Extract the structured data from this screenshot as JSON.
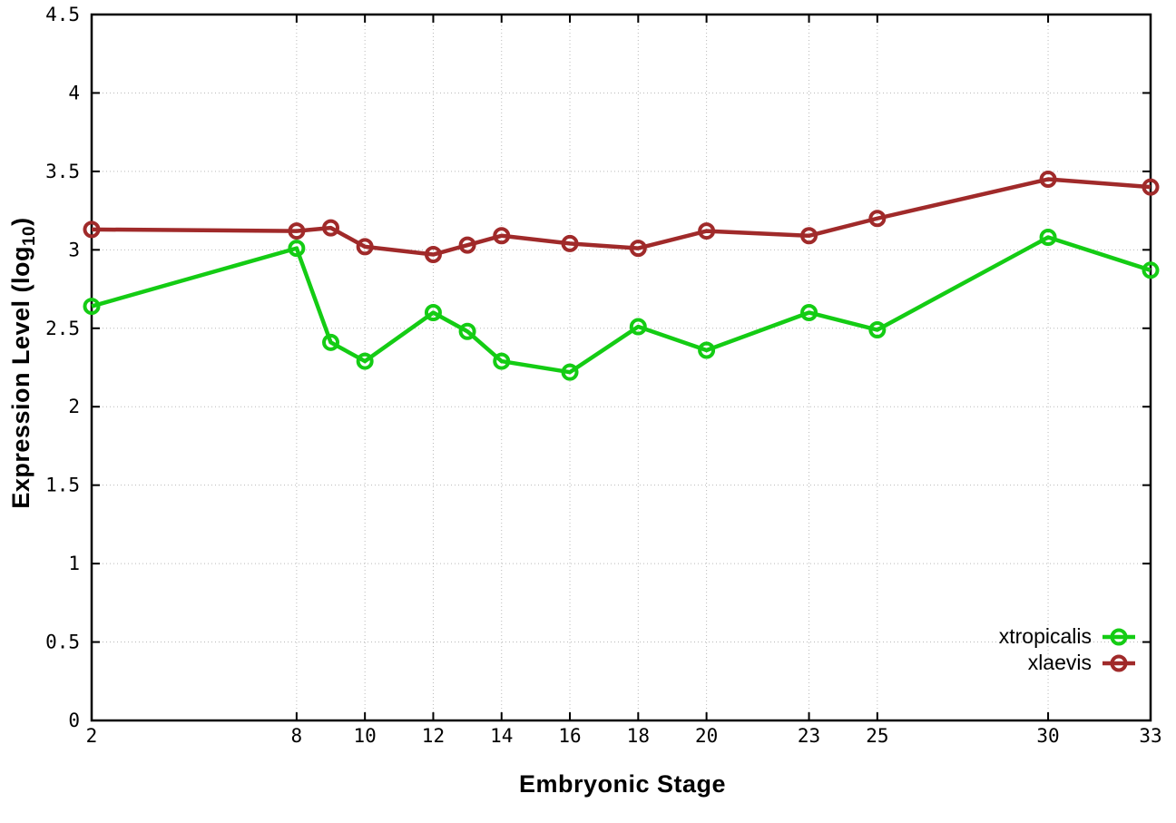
{
  "chart_data": {
    "type": "line",
    "x": [
      2,
      8,
      9,
      10,
      12,
      13,
      14,
      16,
      18,
      20,
      23,
      25,
      30,
      33
    ],
    "series": [
      {
        "name": "xtropicalis",
        "color": "#14cc14",
        "values": [
          2.64,
          3.01,
          2.41,
          2.29,
          2.6,
          2.48,
          2.29,
          2.22,
          2.51,
          2.36,
          2.6,
          2.49,
          3.08,
          2.87
        ]
      },
      {
        "name": "xlaevis",
        "color": "#a02a2a",
        "values": [
          3.13,
          3.12,
          3.14,
          3.02,
          2.97,
          3.03,
          3.09,
          3.04,
          3.01,
          3.12,
          3.09,
          3.2,
          3.45,
          3.4
        ]
      }
    ],
    "xlabel": "Embryonic Stage",
    "ylabel": {
      "text": "Expression Level (log",
      "sub": "10",
      "suffix": ")"
    },
    "xlim": [
      2,
      33
    ],
    "ylim": [
      0,
      4.5
    ],
    "xticks": [
      2,
      8,
      10,
      12,
      14,
      16,
      18,
      20,
      23,
      25,
      30,
      33
    ],
    "yticks": [
      0,
      0.5,
      1,
      1.5,
      2,
      2.5,
      3,
      3.5,
      4,
      4.5
    ],
    "grid": true,
    "legend_position": "bottom-right",
    "background_color": "#ffffff",
    "axis_color": "#000000",
    "grid_color": "#b9b9b9"
  }
}
